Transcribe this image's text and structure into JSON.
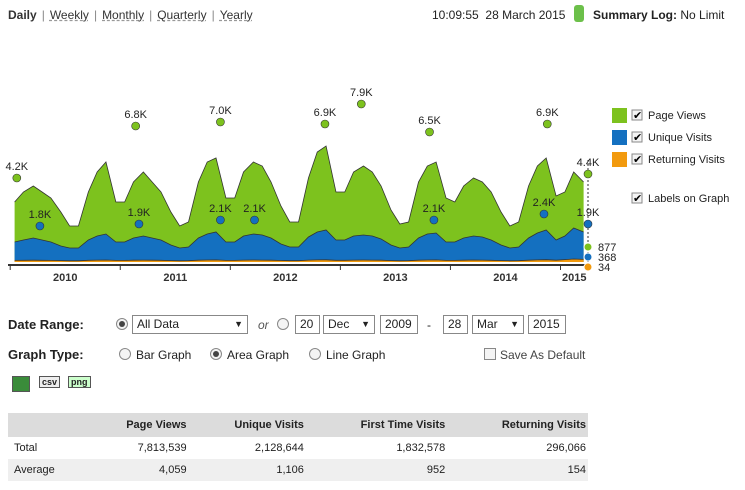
{
  "nav": {
    "tabs": [
      "Daily",
      "Weekly",
      "Monthly",
      "Quarterly",
      "Yearly"
    ],
    "time": "10:09:55",
    "date": "28 March 2015",
    "summary_label": "Summary Log:",
    "summary_value": "No Limit"
  },
  "chart_data": {
    "type": "area",
    "xlim": [
      2009.98,
      2015.25
    ],
    "ylim": [
      0,
      11100
    ],
    "xticks": [
      {
        "value": 2010,
        "label": "2010"
      },
      {
        "value": 2011,
        "label": "2011"
      },
      {
        "value": 2012,
        "label": "2012"
      },
      {
        "value": 2013,
        "label": "2013"
      },
      {
        "value": 2014,
        "label": "2014"
      },
      {
        "value": 2015,
        "label": "2015"
      }
    ],
    "x": [
      2010.04,
      2010.12,
      2010.21,
      2010.29,
      2010.37,
      2010.46,
      2010.54,
      2010.62,
      2010.71,
      2010.79,
      2010.87,
      2010.96,
      2011.04,
      2011.12,
      2011.21,
      2011.29,
      2011.37,
      2011.46,
      2011.54,
      2011.62,
      2011.71,
      2011.79,
      2011.87,
      2011.96,
      2012.04,
      2012.12,
      2012.21,
      2012.29,
      2012.37,
      2012.46,
      2012.54,
      2012.62,
      2012.71,
      2012.79,
      2012.87,
      2012.96,
      2013.04,
      2013.12,
      2013.21,
      2013.29,
      2013.37,
      2013.46,
      2013.54,
      2013.62,
      2013.71,
      2013.79,
      2013.87,
      2013.96,
      2014.04,
      2014.12,
      2014.21,
      2014.29,
      2014.37,
      2014.46,
      2014.54,
      2014.62,
      2014.71,
      2014.79,
      2014.87,
      2014.96,
      2015.04,
      2015.12,
      2015.21
    ],
    "series": [
      {
        "name": "Page Views",
        "color": "#7dc21e",
        "values": [
          3000,
          3500,
          3800,
          3500,
          3200,
          2500,
          1800,
          1800,
          3500,
          4500,
          5000,
          3000,
          3000,
          4000,
          4500,
          4000,
          3500,
          2500,
          1800,
          2000,
          4000,
          5000,
          5200,
          3200,
          3200,
          4500,
          5000,
          4800,
          4000,
          2800,
          2000,
          2000,
          4200,
          5500,
          5800,
          3500,
          3500,
          4500,
          4800,
          4500,
          3800,
          2600,
          1900,
          2000,
          4000,
          4800,
          5000,
          3200,
          3000,
          3800,
          4200,
          4000,
          3500,
          2500,
          1800,
          2000,
          3800,
          4800,
          5200,
          3300,
          3500,
          4500,
          4000
        ],
        "peaks": [
          {
            "x": 2010.06,
            "value": 4200,
            "label": "4.2K"
          },
          {
            "x": 2011.14,
            "value": 6800,
            "label": "6.8K"
          },
          {
            "x": 2011.91,
            "value": 7000,
            "label": "7.0K"
          },
          {
            "x": 2012.86,
            "value": 6900,
            "label": "6.9K"
          },
          {
            "x": 2013.19,
            "value": 7900,
            "label": "7.9K"
          },
          {
            "x": 2013.81,
            "value": 6500,
            "label": "6.5K"
          },
          {
            "x": 2014.88,
            "value": 6900,
            "label": "6.9K"
          },
          {
            "x": 2015.25,
            "value": 4400,
            "label": "4.4K"
          }
        ],
        "last": 877
      },
      {
        "name": "Unique Visits",
        "color": "#1470c0",
        "values": [
          1000,
          1100,
          1200,
          1100,
          1000,
          800,
          700,
          700,
          1100,
          1300,
          1400,
          1000,
          1000,
          1200,
          1300,
          1200,
          1100,
          850,
          700,
          750,
          1200,
          1400,
          1500,
          1000,
          1000,
          1300,
          1400,
          1350,
          1200,
          900,
          750,
          750,
          1250,
          1500,
          1600,
          1100,
          1100,
          1300,
          1350,
          1300,
          1150,
          850,
          700,
          750,
          1200,
          1400,
          1450,
          1000,
          1000,
          1200,
          1300,
          1250,
          1100,
          850,
          700,
          750,
          1200,
          1450,
          1600,
          1100,
          1300,
          1700,
          1500
        ],
        "peaks": [
          {
            "x": 2010.27,
            "value": 1800,
            "label": "1.8K"
          },
          {
            "x": 2011.17,
            "value": 1900,
            "label": "1.9K"
          },
          {
            "x": 2011.91,
            "value": 2100,
            "label": "2.1K"
          },
          {
            "x": 2012.22,
            "value": 2100,
            "label": "2.1K"
          },
          {
            "x": 2013.85,
            "value": 2100,
            "label": "2.1K"
          },
          {
            "x": 2014.85,
            "value": 2400,
            "label": "2.4K"
          },
          {
            "x": 2015.25,
            "value": 1900,
            "label": "1.9K"
          }
        ],
        "last": 368
      },
      {
        "name": "Returning Visits",
        "color": "#f29a0e",
        "values": [
          80,
          85,
          90,
          85,
          80,
          70,
          60,
          60,
          85,
          95,
          100,
          80,
          80,
          90,
          95,
          90,
          85,
          70,
          60,
          65,
          90,
          100,
          105,
          80,
          80,
          95,
          100,
          95,
          90,
          75,
          65,
          65,
          95,
          105,
          110,
          85,
          85,
          95,
          100,
          95,
          90,
          70,
          60,
          65,
          90,
          100,
          105,
          80,
          80,
          90,
          100,
          95,
          85,
          70,
          60,
          65,
          90,
          105,
          115,
          90,
          120,
          150,
          130
        ],
        "peaks": [],
        "last": 34
      }
    ],
    "labels_toggle": "Labels on Graph"
  },
  "form": {
    "date_range_label": "Date Range:",
    "range_option": "All Data",
    "or": "or",
    "from": {
      "day": "20",
      "month": "Dec",
      "year": "2009"
    },
    "dash": "-",
    "to": {
      "day": "28",
      "month": "Mar",
      "year": "2015"
    },
    "graph_type_label": "Graph Type:",
    "graph_types": [
      "Bar Graph",
      "Area Graph",
      "Line Graph"
    ],
    "save_default": "Save As Default",
    "icons": [
      "csv",
      "png"
    ]
  },
  "table": {
    "columns": [
      "Page Views",
      "Unique Visits",
      "First Time Visits",
      "Returning Visits"
    ],
    "rows": [
      {
        "label": "Total",
        "cells": [
          "7,813,539",
          "2,128,644",
          "1,832,578",
          "296,066"
        ]
      },
      {
        "label": "Average",
        "cells": [
          "4,059",
          "1,106",
          "952",
          "154"
        ]
      }
    ]
  }
}
